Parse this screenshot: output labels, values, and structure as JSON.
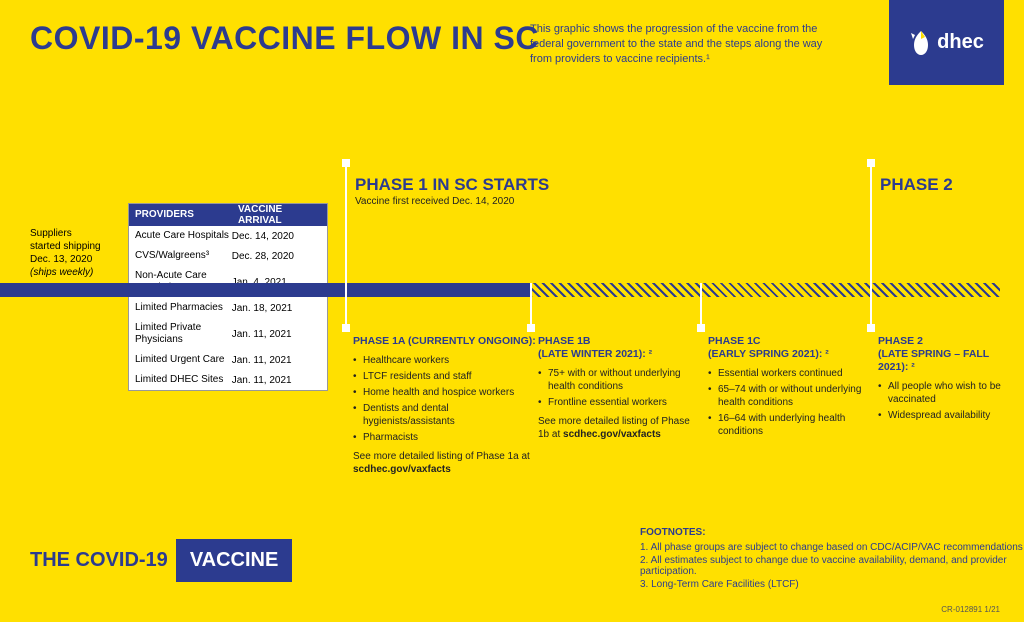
{
  "colors": {
    "bg": "#ffe000",
    "blue": "#2c3b8f",
    "textDark": "#222222",
    "white": "#ffffff",
    "hatchBg": "#ffe000",
    "hatchStroke": "#2c3b8f"
  },
  "header": {
    "title": "COVID-19 VACCINE FLOW IN SC",
    "subtitle": "This graphic shows the progression of the vaccine from the federal government to the state and the steps along the way from providers to vaccine recipients.¹",
    "logoText": "dhec"
  },
  "suppliers": {
    "line1": "Suppliers",
    "line2": "started shipping",
    "line3": "Dec. 13, 2020",
    "line4": "(ships weekly)"
  },
  "providersTable": {
    "col1": "PROVIDERS",
    "col2": "VACCINE ARRIVAL",
    "rows": [
      {
        "p": "Acute Care Hospitals",
        "d": "Dec. 14, 2020"
      },
      {
        "p": "CVS/Walgreens³",
        "d": "Dec. 28, 2020"
      },
      {
        "p": "Non-Acute Care Hospitals",
        "d": "Jan. 4, 2021"
      },
      {
        "p": "Limited Pharmacies",
        "d": "Jan. 18, 2021"
      },
      {
        "p": "Limited Private Physicians",
        "d": "Jan. 11, 2021"
      },
      {
        "p": "Limited Urgent Care",
        "d": "Jan. 11, 2021"
      },
      {
        "p": "Limited DHEC Sites",
        "d": "Jan. 11, 2021"
      }
    ]
  },
  "timeline": {
    "solidEndX": 530,
    "markers": {
      "phase1TopX": 345,
      "phase2TopX": 870,
      "p1aX": 345,
      "p1bX": 530,
      "p1cX": 700,
      "p2X": 870
    }
  },
  "phaseTops": {
    "p1": {
      "label": "PHASE 1 IN SC STARTS",
      "sub": "Vaccine first received Dec. 14, 2020"
    },
    "p2": {
      "label": "PHASE 2",
      "sub": ""
    }
  },
  "phases": {
    "p1a": {
      "title": "PHASE 1A (CURRENTLY ONGOING):",
      "bullets": [
        "Healthcare workers",
        "LTCF residents and staff",
        "Home health and hospice workers",
        "Dentists and dental hygienists/assistants",
        "Pharmacists"
      ],
      "moreText": "See more detailed listing of Phase 1a at ",
      "moreLink": "scdhec.gov/vaxfacts"
    },
    "p1b": {
      "title": "PHASE 1B\n(LATE WINTER 2021): ²",
      "bullets": [
        "75+ with or without underlying health conditions",
        "Frontline essential workers"
      ],
      "moreText": "See more detailed listing of Phase 1b at ",
      "moreLink": "scdhec.gov/vaxfacts"
    },
    "p1c": {
      "title": "PHASE 1C\n(EARLY SPRING 2021): ²",
      "bullets": [
        "Essential workers continued",
        "65–74 with or without underlying health conditions",
        "16–64 with underlying health conditions"
      ]
    },
    "p2": {
      "title": "PHASE 2\n(LATE SPRING – FALL 2021): ²",
      "bullets": [
        "All people who wish to be vaccinated",
        "Widespread availability"
      ]
    }
  },
  "footer": {
    "leftPlain": "THE COVID-19",
    "leftBoxed": "VACCINE"
  },
  "footnotes": {
    "title": "FOOTNOTES:",
    "lines": [
      "1. All phase groups are subject to change based on CDC/ACIP/VAC recommendations",
      "2. All estimates subject to change due to vaccine availability, demand, and provider participation.",
      "3. Long-Term Care Facilities (LTCF)"
    ]
  },
  "docCode": "CR-012891  1/21"
}
